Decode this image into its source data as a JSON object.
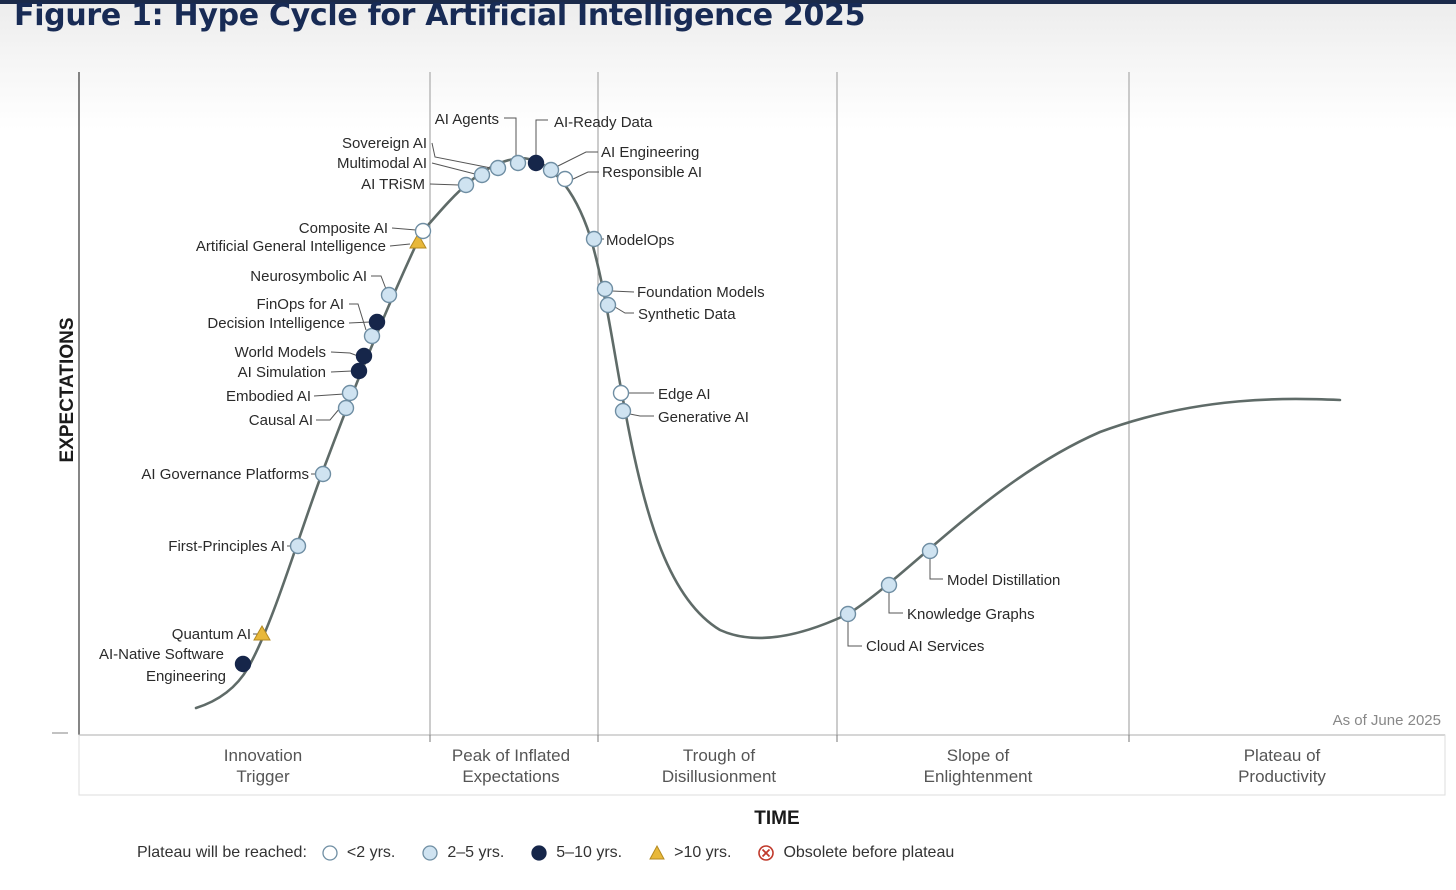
{
  "title": "Figure 1: Hype Cycle for Artificial Intelligence 2025",
  "axes": {
    "y_label": "EXPECTATIONS",
    "x_label": "TIME"
  },
  "as_of": "As of June 2025",
  "phases": [
    {
      "line1": "Innovation",
      "line2": "Trigger"
    },
    {
      "line1": "Peak of Inflated",
      "line2": "Expectations"
    },
    {
      "line1": "Trough of",
      "line2": "Disillusionment"
    },
    {
      "line1": "Slope of",
      "line2": "Enlightenment"
    },
    {
      "line1": "Plateau of",
      "line2": "Productivity"
    }
  ],
  "legend": {
    "caption": "Plateau will be reached:",
    "items": [
      {
        "key": "lt2",
        "label": "<2 yrs."
      },
      {
        "key": "2to5",
        "label": "2–5 yrs."
      },
      {
        "key": "5to10",
        "label": "5–10 yrs."
      },
      {
        "key": "gt10",
        "label": ">10 yrs."
      },
      {
        "key": "obsolete",
        "label": "Obsolete before plateau"
      }
    ]
  },
  "colors": {
    "curve": "#5f6b68",
    "lt2": "#ffffff",
    "2to5": "#cfe3f1",
    "5to10": "#16264a",
    "gt10": "#e8b83a",
    "obsolete": "#c0392b",
    "marker_stroke": "#6f8ea3"
  },
  "chart_data": {
    "type": "hype_cycle",
    "technologies": [
      {
        "name": "AI-Native Software Engineering",
        "phase": "Innovation Trigger",
        "plateau": "5to10"
      },
      {
        "name": "Quantum AI",
        "phase": "Innovation Trigger",
        "plateau": "gt10"
      },
      {
        "name": "First-Principles AI",
        "phase": "Innovation Trigger",
        "plateau": "2to5"
      },
      {
        "name": "AI Governance Platforms",
        "phase": "Innovation Trigger",
        "plateau": "2to5"
      },
      {
        "name": "Causal AI",
        "phase": "Innovation Trigger",
        "plateau": "2to5"
      },
      {
        "name": "Embodied AI",
        "phase": "Innovation Trigger",
        "plateau": "2to5"
      },
      {
        "name": "AI Simulation",
        "phase": "Innovation Trigger",
        "plateau": "5to10"
      },
      {
        "name": "World Models",
        "phase": "Innovation Trigger",
        "plateau": "5to10"
      },
      {
        "name": "FinOps for AI",
        "phase": "Innovation Trigger",
        "plateau": "2to5"
      },
      {
        "name": "Decision Intelligence",
        "phase": "Innovation Trigger",
        "plateau": "5to10"
      },
      {
        "name": "Neurosymbolic AI",
        "phase": "Innovation Trigger",
        "plateau": "2to5"
      },
      {
        "name": "Artificial General Intelligence",
        "phase": "Innovation Trigger",
        "plateau": "gt10"
      },
      {
        "name": "Composite AI",
        "phase": "Innovation Trigger",
        "plateau": "lt2"
      },
      {
        "name": "AI TRiSM",
        "phase": "Peak of Inflated Expectations",
        "plateau": "2to5"
      },
      {
        "name": "Multimodal AI",
        "phase": "Peak of Inflated Expectations",
        "plateau": "2to5"
      },
      {
        "name": "Sovereign AI",
        "phase": "Peak of Inflated Expectations",
        "plateau": "2to5"
      },
      {
        "name": "AI Agents",
        "phase": "Peak of Inflated Expectations",
        "plateau": "2to5"
      },
      {
        "name": "AI-Ready Data",
        "phase": "Peak of Inflated Expectations",
        "plateau": "5to10"
      },
      {
        "name": "AI Engineering",
        "phase": "Peak of Inflated Expectations",
        "plateau": "2to5"
      },
      {
        "name": "Responsible AI",
        "phase": "Peak of Inflated Expectations",
        "plateau": "lt2"
      },
      {
        "name": "ModelOps",
        "phase": "Trough of Disillusionment",
        "plateau": "2to5"
      },
      {
        "name": "Foundation Models",
        "phase": "Trough of Disillusionment",
        "plateau": "2to5"
      },
      {
        "name": "Synthetic Data",
        "phase": "Trough of Disillusionment",
        "plateau": "2to5"
      },
      {
        "name": "Edge AI",
        "phase": "Trough of Disillusionment",
        "plateau": "lt2"
      },
      {
        "name": "Generative AI",
        "phase": "Trough of Disillusionment",
        "plateau": "2to5"
      },
      {
        "name": "Cloud AI Services",
        "phase": "Slope of Enlightenment",
        "plateau": "2to5"
      },
      {
        "name": "Knowledge Graphs",
        "phase": "Slope of Enlightenment",
        "plateau": "2to5"
      },
      {
        "name": "Model Distillation",
        "phase": "Slope of Enlightenment",
        "plateau": "2to5"
      }
    ]
  }
}
